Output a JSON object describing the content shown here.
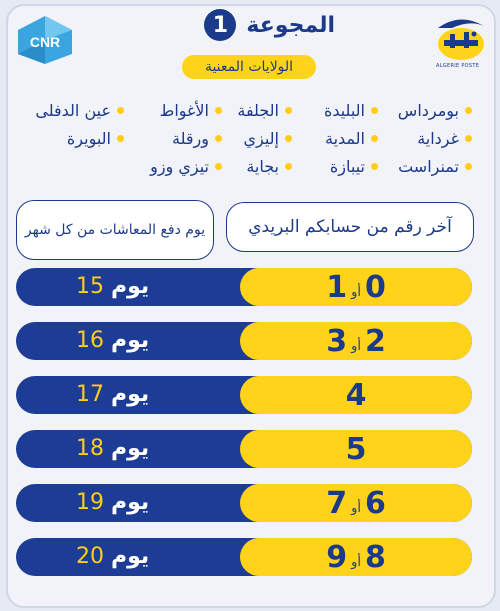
{
  "header": {
    "title": "المجوعة",
    "group_number": "1",
    "subtitle": "الولايات المعنية",
    "cnr_logo_text": "CNR",
    "poste_brand_text": "ALGERIE POSTE"
  },
  "provinces": [
    "بومرداس",
    "البليدة",
    "الجلفة",
    "الأغواط",
    "عين الدفلى",
    "غرداية",
    "المدية",
    "إليزي",
    "ورقلة",
    "البويرة",
    "تمنراست",
    "تيبازة",
    "بجاية",
    "تيزي وزو"
  ],
  "table": {
    "col_right_header": "آخر رقم من حسابكم البريدي",
    "col_left_header": "يوم دفع المعاشات من كل شهر",
    "day_word": "يوم",
    "or_word": "أو",
    "rows": [
      {
        "digit_a": "0",
        "digit_b": "1",
        "day": "15"
      },
      {
        "digit_a": "2",
        "digit_b": "3",
        "day": "16"
      },
      {
        "digit_a": "4",
        "digit_b": "",
        "day": "17"
      },
      {
        "digit_a": "5",
        "digit_b": "",
        "day": "18"
      },
      {
        "digit_a": "6",
        "digit_b": "7",
        "day": "19"
      },
      {
        "digit_a": "8",
        "digit_b": "9",
        "day": "20"
      }
    ]
  },
  "colors": {
    "navy": "#1c3c95",
    "yellow": "#ffd31a",
    "background": "#e6eaf4"
  }
}
